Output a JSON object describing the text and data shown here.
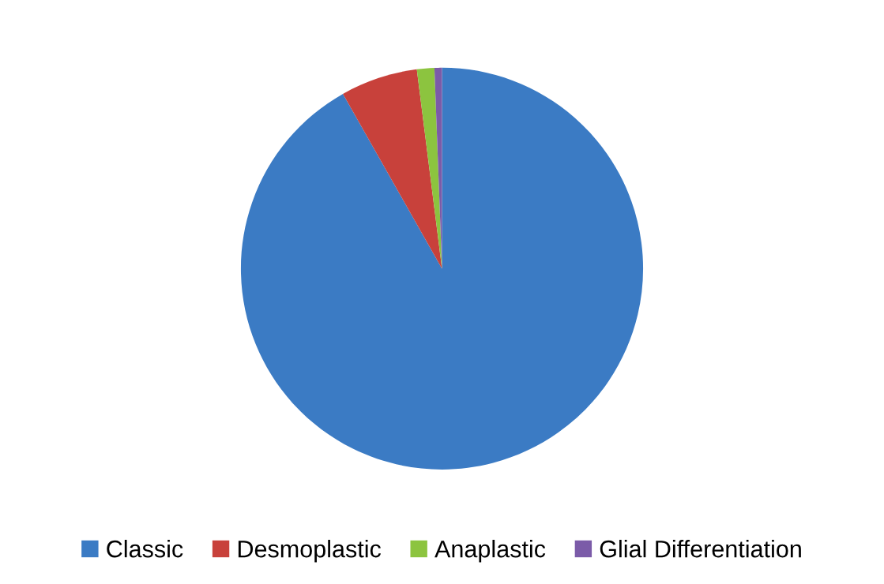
{
  "chart_data": {
    "type": "pie",
    "categories": [
      "Classic",
      "Desmoplastic",
      "Anaplastic",
      "Glial Differentiation"
    ],
    "values": [
      91.8,
      6.2,
      1.4,
      0.6
    ],
    "colors": [
      "#3b7bc4",
      "#c8413b",
      "#8cc43f",
      "#7b5ba8"
    ],
    "legend": "bottom"
  }
}
